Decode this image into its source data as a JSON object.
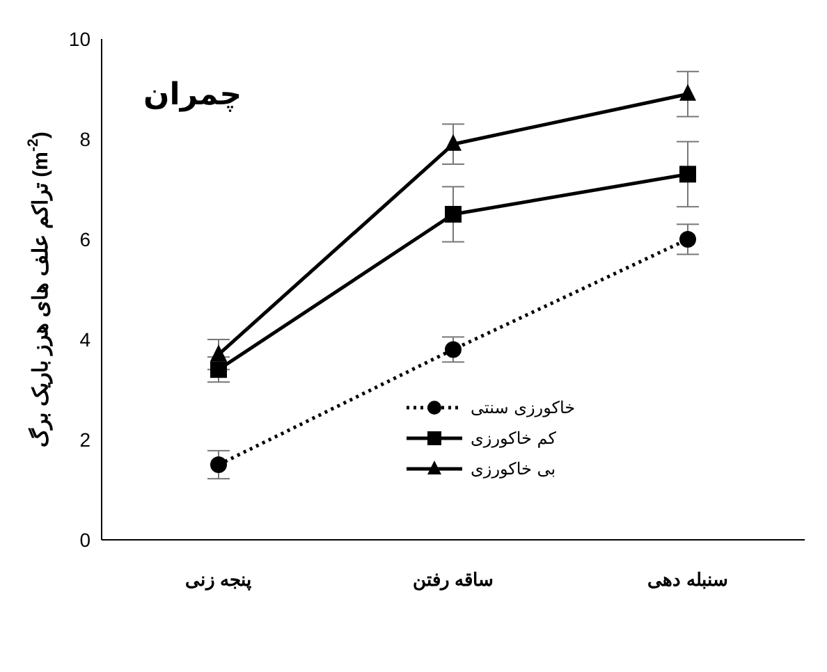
{
  "chart_data": {
    "type": "line",
    "title": "چمران",
    "ylabel": "تراکم علف های هرز باریک برگ (m$^{-2}$)",
    "categories": [
      "پنجه زنی",
      "ساقه رفتن",
      "سنبله دهی"
    ],
    "series": [
      {
        "name": "خاکورزی سنتی",
        "color": "#000000",
        "values": [
          1.5,
          3.8,
          6.0
        ],
        "errors": [
          0.28,
          0.25,
          0.3
        ],
        "marker": "circle",
        "line_style": "dotted"
      },
      {
        "name": "کم خاکورزی",
        "color": "#000000",
        "values": [
          3.4,
          6.5,
          7.3
        ],
        "errors": [
          0.25,
          0.55,
          0.65
        ],
        "marker": "square",
        "line_style": "solid"
      },
      {
        "name": "بی خاکورزی",
        "color": "#000000",
        "values": [
          3.7,
          7.9,
          8.9
        ],
        "errors": [
          0.3,
          0.4,
          0.45
        ],
        "marker": "triangle",
        "line_style": "solid"
      }
    ],
    "ylim": [
      0,
      10
    ],
    "yticks": [
      0,
      2,
      4,
      6,
      8,
      10
    ],
    "grid": false,
    "legend": "bottom right"
  }
}
